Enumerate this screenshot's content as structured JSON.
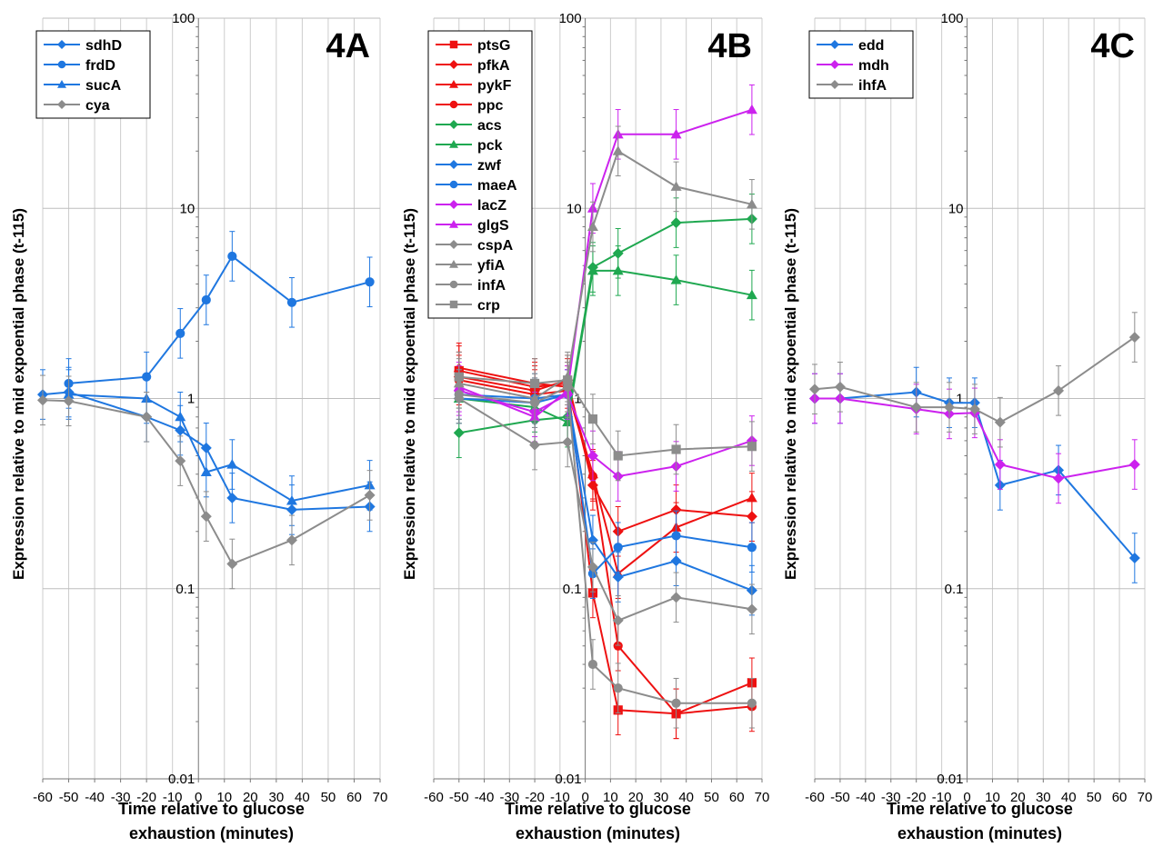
{
  "chart_data": [
    {
      "type": "line",
      "panel_label": "4A",
      "ylabel": "Expression relative to mid expoential phase (t-115)",
      "xlabel_lines": [
        "Time relative to glucose",
        "exhaustion (minutes)"
      ],
      "xlim": [
        -60,
        70
      ],
      "ylim": [
        0.01,
        100
      ],
      "y_scale": "log",
      "x_ticks": [
        "-60",
        "-50",
        "-40",
        "-30",
        "-20",
        "-10",
        "0",
        "10",
        "20",
        "30",
        "40",
        "50",
        "60",
        "70"
      ],
      "y_ticks": [
        "0.01",
        "0.1",
        "1",
        "10",
        "100"
      ],
      "legend_position": "top-left",
      "series": [
        {
          "name": "sdhD",
          "color": "#1f77e0",
          "marker": "diamond",
          "x": [
            -60,
            -50,
            -20,
            -7,
            3,
            13,
            36,
            66
          ],
          "y": [
            1.05,
            1.08,
            0.8,
            0.68,
            0.55,
            0.3,
            0.26,
            0.27
          ]
        },
        {
          "name": "frdD",
          "color": "#1f77e0",
          "marker": "circle",
          "x": [
            -50,
            -20,
            -7,
            3,
            13,
            36,
            66
          ],
          "y": [
            1.2,
            1.3,
            2.2,
            3.3,
            5.6,
            3.2,
            4.1
          ]
        },
        {
          "name": "sucA",
          "color": "#1f77e0",
          "marker": "triangle",
          "x": [
            -50,
            -20,
            -7,
            3,
            13,
            36,
            66
          ],
          "y": [
            1.05,
            1.0,
            0.8,
            0.41,
            0.45,
            0.29,
            0.35
          ]
        },
        {
          "name": "cya",
          "color": "#8c8c8c",
          "marker": "diamond",
          "x": [
            -60,
            -50,
            -20,
            -7,
            3,
            13,
            36,
            66
          ],
          "y": [
            0.98,
            0.97,
            0.8,
            0.47,
            0.24,
            0.135,
            0.18,
            0.31
          ]
        }
      ]
    },
    {
      "type": "line",
      "panel_label": "4B",
      "ylabel": "Expression relative to mid expoential phase (t-115)",
      "xlabel_lines": [
        "Time relative to glucose",
        "exhaustion (minutes)"
      ],
      "xlim": [
        -60,
        70
      ],
      "ylim": [
        0.01,
        100
      ],
      "y_scale": "log",
      "x_ticks": [
        "-60",
        "-50",
        "-40",
        "-30",
        "-20",
        "-10",
        "0",
        "10",
        "20",
        "30",
        "40",
        "50",
        "60",
        "70"
      ],
      "y_ticks": [
        "0.01",
        "0.1",
        "1",
        "10",
        "100"
      ],
      "legend_position": "top-left",
      "series": [
        {
          "name": "ptsG",
          "color": "#ee1111",
          "marker": "square",
          "x": [
            -50,
            -20,
            -7,
            3,
            13,
            36,
            66
          ],
          "y": [
            1.4,
            1.15,
            1.2,
            0.095,
            0.023,
            0.022,
            0.032
          ]
        },
        {
          "name": "pfkA",
          "color": "#ee1111",
          "marker": "diamond",
          "x": [
            -50,
            -20,
            -7,
            3,
            13,
            36,
            66
          ],
          "y": [
            1.3,
            1.1,
            1.25,
            0.35,
            0.2,
            0.26,
            0.24
          ]
        },
        {
          "name": "pykF",
          "color": "#ee1111",
          "marker": "triangle",
          "x": [
            -50,
            -20,
            -7,
            3,
            13,
            36,
            66
          ],
          "y": [
            1.45,
            1.2,
            1.15,
            0.4,
            0.12,
            0.21,
            0.3
          ]
        },
        {
          "name": "ppc",
          "color": "#ee1111",
          "marker": "circle",
          "x": [
            -50,
            -20,
            -7,
            3,
            13,
            36,
            66
          ],
          "y": [
            1.25,
            1.05,
            1.1,
            0.39,
            0.05,
            0.022,
            0.024
          ]
        },
        {
          "name": "acs",
          "color": "#1fa850",
          "marker": "diamond",
          "x": [
            -50,
            -20,
            -7,
            3,
            13,
            36,
            66
          ],
          "y": [
            0.66,
            0.77,
            0.8,
            4.9,
            5.8,
            8.4,
            8.8
          ]
        },
        {
          "name": "pck",
          "color": "#1fa850",
          "marker": "triangle",
          "x": [
            -50,
            -20,
            -7,
            3,
            13,
            36,
            66
          ],
          "y": [
            1.0,
            0.9,
            0.75,
            4.7,
            4.7,
            4.2,
            3.5
          ]
        },
        {
          "name": "zwf",
          "color": "#1f77e0",
          "marker": "diamond",
          "x": [
            -50,
            -20,
            -7,
            3,
            13,
            36,
            66
          ],
          "y": [
            1.0,
            0.95,
            1.05,
            0.18,
            0.115,
            0.14,
            0.098
          ]
        },
        {
          "name": "maeA",
          "color": "#1f77e0",
          "marker": "circle",
          "x": [
            -50,
            -20,
            -7,
            3,
            13,
            36,
            66
          ],
          "y": [
            1.05,
            1.0,
            1.05,
            0.12,
            0.165,
            0.19,
            0.165
          ]
        },
        {
          "name": "lacZ",
          "color": "#cc22ee",
          "marker": "diamond",
          "x": [
            -50,
            -20,
            -7,
            3,
            13,
            36,
            66
          ],
          "y": [
            1.1,
            0.85,
            1.05,
            0.5,
            0.39,
            0.44,
            0.6
          ]
        },
        {
          "name": "glgS",
          "color": "#cc22ee",
          "marker": "triangle",
          "x": [
            -50,
            -20,
            -7,
            3,
            13,
            36,
            66
          ],
          "y": [
            1.15,
            0.8,
            1.1,
            10,
            24.5,
            24.5,
            33
          ]
        },
        {
          "name": "cspA",
          "color": "#8c8c8c",
          "marker": "diamond",
          "x": [
            -50,
            -20,
            -7,
            3,
            13,
            36,
            66
          ],
          "y": [
            1.0,
            0.57,
            0.59,
            0.13,
            0.068,
            0.09,
            0.078
          ]
        },
        {
          "name": "yfiA",
          "color": "#8c8c8c",
          "marker": "triangle",
          "x": [
            -50,
            -20,
            -7,
            3,
            13,
            36,
            66
          ],
          "y": [
            1.2,
            1.0,
            1.3,
            8,
            20,
            13,
            10.5
          ]
        },
        {
          "name": "infA",
          "color": "#8c8c8c",
          "marker": "circle",
          "x": [
            -50,
            -20,
            -7,
            3,
            13,
            36,
            66
          ],
          "y": [
            1.05,
            0.95,
            1.15,
            0.04,
            0.03,
            0.025,
            0.025
          ]
        },
        {
          "name": "crp",
          "color": "#8c8c8c",
          "marker": "square",
          "x": [
            -50,
            -20,
            -7,
            3,
            13,
            36,
            66
          ],
          "y": [
            1.3,
            1.2,
            1.25,
            0.78,
            0.5,
            0.54,
            0.56
          ]
        }
      ]
    },
    {
      "type": "line",
      "panel_label": "4C",
      "ylabel": "Expression relative to mid expoential phase (t-115)",
      "xlabel_lines": [
        "Time relative to glucose",
        "exhaustion (minutes)"
      ],
      "xlim": [
        -60,
        70
      ],
      "ylim": [
        0.01,
        100
      ],
      "y_scale": "log",
      "x_ticks": [
        "-60",
        "-50",
        "-40",
        "-30",
        "-20",
        "-10",
        "0",
        "10",
        "20",
        "30",
        "40",
        "50",
        "60",
        "70"
      ],
      "y_ticks": [
        "0.01",
        "0.1",
        "1",
        "10",
        "100"
      ],
      "legend_position": "top-left",
      "series": [
        {
          "name": "edd",
          "color": "#1f77e0",
          "marker": "diamond",
          "x": [
            -60,
            -50,
            -20,
            -7,
            3,
            13,
            36,
            66
          ],
          "y": [
            1.0,
            1.0,
            1.08,
            0.95,
            0.95,
            0.35,
            0.42,
            0.145
          ]
        },
        {
          "name": "mdh",
          "color": "#cc22ee",
          "marker": "diamond",
          "x": [
            -60,
            -50,
            -20,
            -7,
            3,
            13,
            36,
            66
          ],
          "y": [
            1.0,
            1.0,
            0.88,
            0.83,
            0.84,
            0.45,
            0.38,
            0.45
          ]
        },
        {
          "name": "ihfA",
          "color": "#8c8c8c",
          "marker": "diamond",
          "x": [
            -60,
            -50,
            -20,
            -7,
            3,
            13,
            36,
            66
          ],
          "y": [
            1.12,
            1.15,
            0.9,
            0.9,
            0.88,
            0.75,
            1.1,
            2.1
          ]
        }
      ]
    }
  ]
}
